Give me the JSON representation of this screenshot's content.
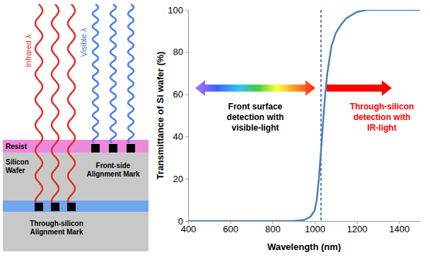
{
  "diagram": {
    "infrared": "Infrared λ",
    "visible": "Visible λ",
    "resist": "Resist",
    "wafer": "Silicon Wafer",
    "front_mark": "Front-side Alignment Mark",
    "through_mark": "Through-silicon Alignment Mark"
  },
  "chart_data": {
    "type": "line",
    "x": [
      400,
      500,
      600,
      700,
      800,
      900,
      950,
      980,
      1000,
      1010,
      1020,
      1030,
      1040,
      1050,
      1060,
      1080,
      1100,
      1125,
      1150,
      1200,
      1250,
      1300,
      1400,
      1500
    ],
    "values": [
      0,
      0,
      0,
      0,
      0,
      0,
      0.5,
      2,
      5,
      10,
      20,
      33,
      47,
      60,
      70,
      83,
      89,
      93,
      96,
      99,
      100,
      100,
      100,
      100
    ],
    "color": "#4a7ebb",
    "xlim": [
      400,
      1500
    ],
    "ylim": [
      0,
      100
    ],
    "xticks": [
      400,
      600,
      800,
      1000,
      1200,
      1400
    ],
    "yticks": [
      0,
      20,
      40,
      60,
      80,
      100
    ],
    "xlabel": "Wavelength (nm)",
    "ylabel": "Transmittance of Si wafer (%)",
    "grid": false,
    "vlines": [
      1030
    ],
    "annotations": [
      {
        "text": "Front surface detection with visible-light",
        "color": "#000000"
      },
      {
        "text": "Through-silicon detection with IR-light",
        "color": "#ff0000"
      }
    ]
  }
}
